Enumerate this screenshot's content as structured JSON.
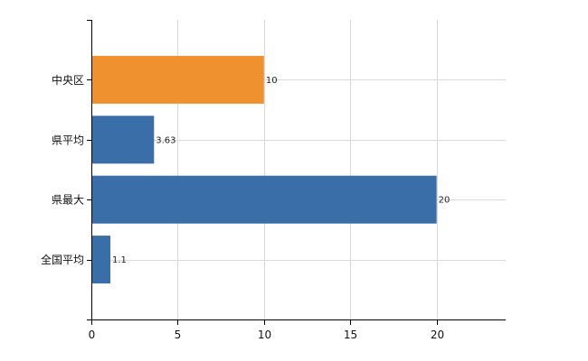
{
  "chart_data": {
    "type": "bar",
    "orientation": "horizontal",
    "categories": [
      "中央区",
      "県平均",
      "県最大",
      "全国平均"
    ],
    "values": [
      10,
      3.63,
      20,
      1.1
    ],
    "data_labels": [
      "10",
      "3.63",
      "20",
      "1.1"
    ],
    "bar_colors": [
      "#f0912f",
      "#3a6ea8",
      "#3a6ea8",
      "#3a6ea8"
    ],
    "x_ticks": [
      0,
      5,
      10,
      15,
      20
    ],
    "x_tick_labels": [
      "0",
      "5",
      "10",
      "15",
      "20"
    ],
    "xlim": [
      0,
      24
    ],
    "grid": true,
    "legend": "none"
  }
}
